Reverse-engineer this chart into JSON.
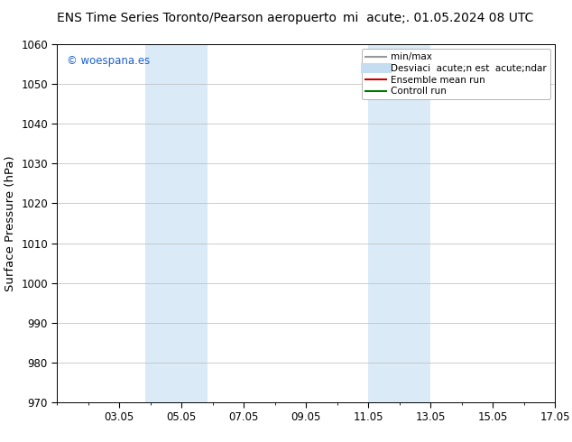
{
  "title": "ENS Time Series Toronto/Pearson aeropuerto",
  "title_right": "mi  acute;. 01.05.2024 08 UTC",
  "ylabel": "Surface Pressure (hPa)",
  "ylim": [
    970,
    1060
  ],
  "yticks": [
    970,
    980,
    990,
    1000,
    1010,
    1020,
    1030,
    1040,
    1050,
    1060
  ],
  "xstart_day": 1,
  "xend_day": 17,
  "xtick_days": [
    3,
    5,
    7,
    9,
    11,
    13,
    15,
    17
  ],
  "xtick_labels": [
    "03.05",
    "05.05",
    "07.05",
    "09.05",
    "11.05",
    "13.05",
    "15.05",
    "17.05"
  ],
  "shaded_bands": [
    {
      "x_start": 3.83,
      "x_end": 5.83,
      "color": "#daeaf7"
    },
    {
      "x_start": 11.0,
      "x_end": 13.0,
      "color": "#daeaf7"
    }
  ],
  "watermark_text": "© woespana.es",
  "watermark_color": "#1a5fce",
  "legend_entries": [
    {
      "label": "min/max",
      "color": "#999999",
      "lw": 1.5
    },
    {
      "label": "Desviaci  acute;n est  acute;ndar",
      "color": "#c5ddf0",
      "lw": 8
    },
    {
      "label": "Ensemble mean run",
      "color": "#cc0000",
      "lw": 1.5
    },
    {
      "label": "Controll run",
      "color": "#007700",
      "lw": 1.5
    }
  ],
  "bg_color": "#ffffff",
  "grid_color": "#bbbbbb",
  "title_fontsize": 10,
  "tick_fontsize": 8.5,
  "ylabel_fontsize": 9.5,
  "legend_fontsize": 7.5
}
